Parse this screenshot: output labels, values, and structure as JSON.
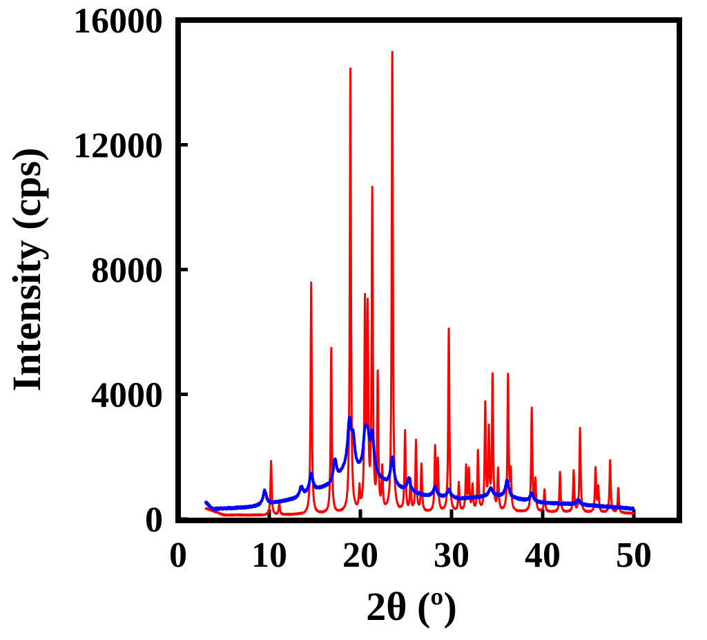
{
  "chart_data": {
    "type": "line",
    "title": "",
    "xlabel": "2θ  (º)",
    "ylabel": "Intensity (cps)",
    "xlim": [
      0,
      55
    ],
    "ylim": [
      0,
      16000
    ],
    "x_ticks": [
      0,
      10,
      20,
      30,
      40,
      50
    ],
    "y_ticks": [
      0,
      4000,
      8000,
      12000,
      16000
    ],
    "x_tick_labels": [
      "0",
      "10",
      "20",
      "30",
      "40",
      "50"
    ],
    "y_tick_labels": [
      "0",
      "4000",
      "8000",
      "12000",
      "16000"
    ],
    "grid": false,
    "legend": "none",
    "series": [
      {
        "color": "#ff0000",
        "baseline": [
          [
            3,
            350
          ],
          [
            5,
            130
          ],
          [
            10,
            120
          ],
          [
            15,
            150
          ],
          [
            20,
            180
          ],
          [
            25,
            200
          ],
          [
            30,
            210
          ],
          [
            35,
            220
          ],
          [
            40,
            220
          ],
          [
            45,
            200
          ],
          [
            50,
            180
          ]
        ],
        "peaks": [
          [
            10.2,
            1750
          ],
          [
            11.1,
            380
          ],
          [
            14.6,
            7400
          ],
          [
            16.8,
            5300
          ],
          [
            18.9,
            14200
          ],
          [
            19.9,
            700
          ],
          [
            20.5,
            6500
          ],
          [
            20.8,
            6200
          ],
          [
            21.3,
            10150
          ],
          [
            21.9,
            4300
          ],
          [
            22.4,
            1300
          ],
          [
            23.5,
            14750
          ],
          [
            24.9,
            2550
          ],
          [
            25.5,
            1000
          ],
          [
            26.1,
            2250
          ],
          [
            26.7,
            1500
          ],
          [
            28.2,
            2050
          ],
          [
            28.5,
            1600
          ],
          [
            29.7,
            5850
          ],
          [
            30.8,
            900
          ],
          [
            31.6,
            1400
          ],
          [
            31.9,
            1300
          ],
          [
            32.3,
            800
          ],
          [
            32.9,
            1900
          ],
          [
            33.7,
            3400
          ],
          [
            34.1,
            2500
          ],
          [
            34.5,
            4300
          ],
          [
            35.1,
            1300
          ],
          [
            36.2,
            4350
          ],
          [
            36.5,
            1200
          ],
          [
            38.8,
            3300
          ],
          [
            39.2,
            1000
          ],
          [
            40.2,
            700
          ],
          [
            41.9,
            1300
          ],
          [
            43.4,
            1300
          ],
          [
            44.1,
            2700
          ],
          [
            45.8,
            1400
          ],
          [
            46.1,
            800
          ],
          [
            47.4,
            1700
          ],
          [
            48.3,
            800
          ]
        ]
      },
      {
        "color": "#0000ff",
        "baseline": [
          [
            3,
            550
          ],
          [
            3.8,
            320
          ],
          [
            8,
            380
          ],
          [
            10.3,
            500
          ],
          [
            13,
            650
          ],
          [
            15,
            900
          ],
          [
            17,
            1100
          ],
          [
            18.5,
            1600
          ],
          [
            19.5,
            1500
          ],
          [
            21,
            1450
          ],
          [
            23,
            1100
          ],
          [
            25,
            900
          ],
          [
            27,
            750
          ],
          [
            29,
            700
          ],
          [
            31,
            650
          ],
          [
            33,
            700
          ],
          [
            34.5,
            750
          ],
          [
            36,
            700
          ],
          [
            38,
            600
          ],
          [
            40,
            520
          ],
          [
            43,
            480
          ],
          [
            46,
            420
          ],
          [
            50,
            330
          ]
        ],
        "peaks": [
          [
            9.5,
            450
          ],
          [
            13.5,
            300
          ],
          [
            14.6,
            600
          ],
          [
            17.2,
            700
          ],
          [
            18.8,
            1450
          ],
          [
            19.2,
            900
          ],
          [
            20.5,
            1050
          ],
          [
            20.8,
            900
          ],
          [
            21.3,
            1200
          ],
          [
            23.5,
            900
          ],
          [
            25.3,
            400
          ],
          [
            28.2,
            300
          ],
          [
            29.7,
            250
          ],
          [
            34.3,
            250
          ],
          [
            36.1,
            550
          ],
          [
            38.8,
            250
          ],
          [
            43.9,
            150
          ]
        ]
      }
    ]
  }
}
